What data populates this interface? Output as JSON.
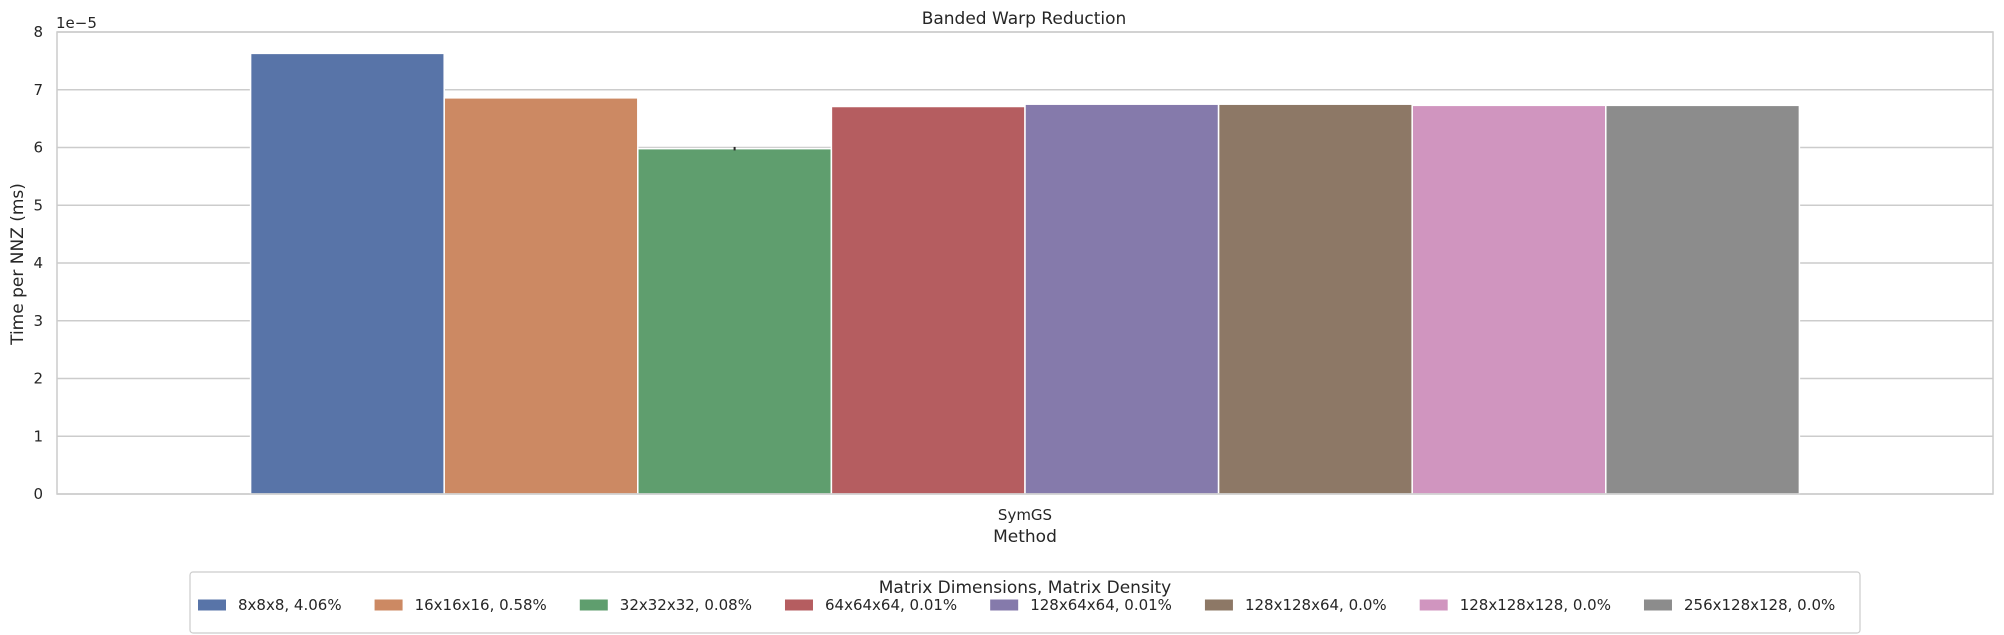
{
  "chart_data": {
    "type": "bar",
    "title": "Banded Warp Reduction",
    "xlabel": "Method",
    "ylabel": "Time per NNZ (ms)",
    "y_offset_label": "1e−5",
    "categories": [
      "SymGS"
    ],
    "ylim": [
      0,
      8
    ],
    "yticks": [
      "0",
      "1",
      "2",
      "3",
      "4",
      "5",
      "6",
      "7",
      "8"
    ],
    "grid": true,
    "legend_title": "Matrix Dimensions, Matrix Density",
    "legend_position": "bottom-center",
    "series": [
      {
        "name": "8x8x8, 4.06%",
        "values": [
          7.63
        ],
        "color": "#5874a8"
      },
      {
        "name": "16x16x16, 0.58%",
        "values": [
          6.86
        ],
        "color": "#cc8963"
      },
      {
        "name": "32x32x32, 0.08%",
        "values": [
          5.98
        ],
        "error": [
          0.03
        ],
        "color": "#5f9e6e"
      },
      {
        "name": "64x64x64, 0.01%",
        "values": [
          6.71
        ],
        "color": "#b55d60"
      },
      {
        "name": "128x64x64, 0.01%",
        "values": [
          6.75
        ],
        "color": "#857aab"
      },
      {
        "name": "128x128x64, 0.0%",
        "values": [
          6.75
        ],
        "color": "#8d7866"
      },
      {
        "name": "128x128x128, 0.0%",
        "values": [
          6.73
        ],
        "color": "#d095bf"
      },
      {
        "name": "256x128x128, 0.0%",
        "values": [
          6.73
        ],
        "color": "#8c8c8c"
      }
    ]
  }
}
